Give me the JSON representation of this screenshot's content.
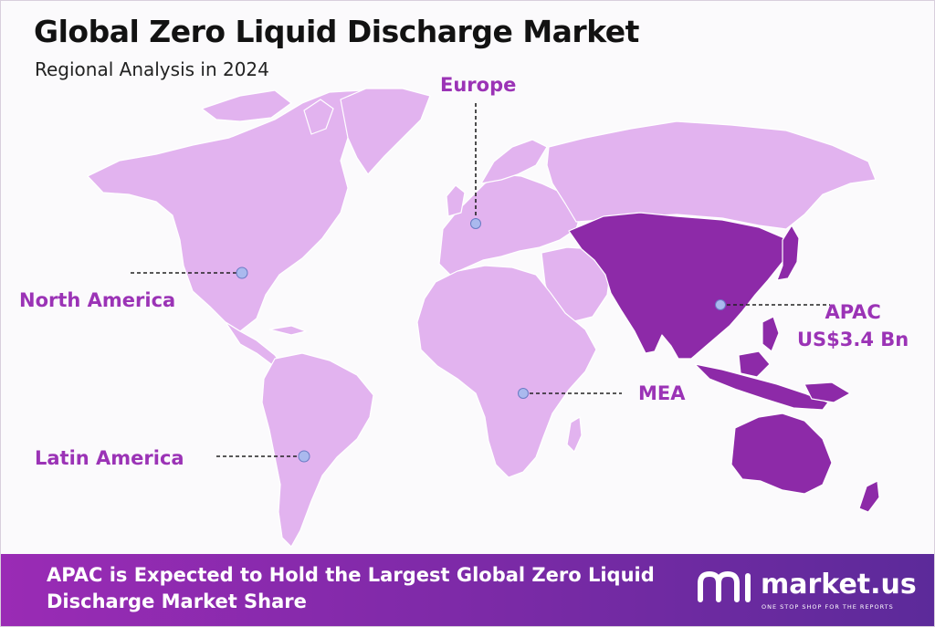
{
  "header": {
    "title": "Global Zero Liquid Discharge Market",
    "subtitle": "Regional Analysis in 2024"
  },
  "regions": {
    "europe": {
      "name": "Europe"
    },
    "north_america": {
      "name": "North America"
    },
    "latin_america": {
      "name": "Latin America"
    },
    "mea": {
      "name": "MEA"
    },
    "apac": {
      "name": "APAC",
      "value": "US$3.4 Bn"
    }
  },
  "colors": {
    "land": "#e2b3ef",
    "highlight": "#8d2aa8",
    "label": "#9b33b6",
    "marker": "#aab9ee",
    "banner": "#8a2ab0"
  },
  "banner": {
    "line1": "APAC is Expected to Hold the Largest Global Zero Liquid",
    "line2": "Discharge Market Share"
  },
  "brand": {
    "name": "market.us",
    "tagline": "ONE STOP SHOP FOR THE REPORTS",
    "logo_icon": "market-us-logo-icon"
  }
}
